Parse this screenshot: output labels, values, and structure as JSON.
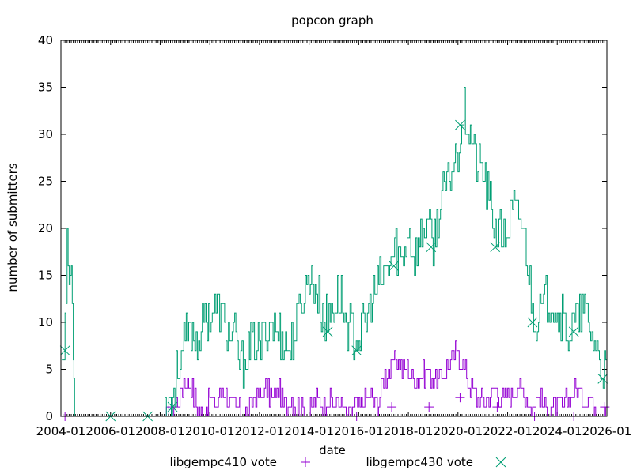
{
  "chart_data": {
    "type": "line",
    "title": "popcon graph",
    "xlabel": "date",
    "ylabel": "number of submitters",
    "xlim": [
      "2004-01-01",
      "2026-01-01"
    ],
    "ylim": [
      0,
      40
    ],
    "x_ticks": [
      "2004-01",
      "2006-01",
      "2008-01",
      "2010-01",
      "2012-01",
      "2014-01",
      "2016-01",
      "2018-01",
      "2020-01",
      "2022-01",
      "2024-01",
      "2026-01"
    ],
    "y_ticks": [
      0,
      5,
      10,
      15,
      20,
      25,
      30,
      35,
      40
    ],
    "grid": false,
    "legend_position": "bottom",
    "series": [
      {
        "name": "libgempc410 vote",
        "color": "#9400d3",
        "marker": "plus",
        "x": [
          "2004-03-01",
          "2008-04-01",
          "2008-07-01",
          "2008-10-01",
          "2009-01-01",
          "2009-04-01",
          "2009-07-01",
          "2009-10-01",
          "2010-01-01",
          "2010-04-01",
          "2010-07-01",
          "2010-10-01",
          "2011-01-01",
          "2011-04-01",
          "2011-07-01",
          "2011-10-01",
          "2012-01-01",
          "2012-04-01",
          "2012-07-01",
          "2012-10-01",
          "2013-01-01",
          "2013-04-01",
          "2013-07-01",
          "2013-10-01",
          "2014-01-01",
          "2014-04-01",
          "2014-07-01",
          "2014-10-01",
          "2015-01-01",
          "2015-04-01",
          "2015-07-01",
          "2015-10-01",
          "2016-01-01",
          "2016-04-01",
          "2016-07-01",
          "2016-10-01",
          "2017-01-01",
          "2017-04-01",
          "2017-07-01",
          "2017-10-01",
          "2018-01-01",
          "2018-04-01",
          "2018-07-01",
          "2018-10-01",
          "2019-01-01",
          "2019-04-01",
          "2019-07-01",
          "2019-10-01",
          "2020-01-01",
          "2020-04-01",
          "2020-07-01",
          "2020-10-01",
          "2021-01-01",
          "2021-04-01",
          "2021-07-01",
          "2021-10-01",
          "2022-01-01",
          "2022-04-01",
          "2022-07-01",
          "2022-10-01",
          "2023-01-01",
          "2023-04-01",
          "2023-07-01",
          "2023-10-01",
          "2024-01-01",
          "2024-04-01",
          "2024-07-01",
          "2024-10-01",
          "2025-01-01",
          "2025-04-01",
          "2025-07-01",
          "2025-10-01",
          "2026-01-01"
        ],
        "values": [
          0,
          0,
          1,
          2,
          4,
          3,
          1,
          0,
          2,
          1,
          3,
          2,
          1,
          1,
          0,
          2,
          2,
          3,
          2,
          3,
          1,
          2,
          1,
          1,
          0,
          2,
          1,
          2,
          1,
          2,
          0,
          1,
          1,
          2,
          2,
          1,
          4,
          5,
          6,
          5,
          5,
          4,
          4,
          5,
          4,
          4,
          5,
          6,
          7,
          5,
          3,
          2,
          2,
          2,
          3,
          2,
          2,
          3,
          3,
          2,
          1,
          2,
          1,
          1,
          1,
          1,
          2,
          3,
          2,
          2,
          1,
          1,
          1
        ],
        "marker_x": [
          "2004-03-01",
          "2008-07-01",
          "2015-12-01",
          "2017-05-01",
          "2018-11-01",
          "2020-02-01",
          "2021-08-01",
          "2023-02-01",
          "2024-09-01",
          "2025-12-01"
        ],
        "marker_values": [
          0,
          1,
          0,
          1,
          1,
          2,
          1,
          0,
          0,
          1
        ]
      },
      {
        "name": "libgempc430 vote",
        "color": "#009e73",
        "marker": "x",
        "x": [
          "2004-01-15",
          "2004-03-01",
          "2004-04-01",
          "2004-05-01",
          "2004-06-01",
          "2004-07-01",
          "2004-07-20",
          "2008-02-01",
          "2008-04-01",
          "2008-07-01",
          "2008-10-01",
          "2009-01-01",
          "2009-04-01",
          "2009-07-01",
          "2009-10-01",
          "2010-01-01",
          "2010-04-01",
          "2010-07-01",
          "2010-10-01",
          "2011-01-01",
          "2011-04-01",
          "2011-07-01",
          "2011-10-01",
          "2012-01-01",
          "2012-04-01",
          "2012-07-01",
          "2012-10-01",
          "2013-01-01",
          "2013-04-01",
          "2013-07-01",
          "2013-10-01",
          "2014-01-01",
          "2014-04-01",
          "2014-07-01",
          "2014-10-01",
          "2015-01-01",
          "2015-04-01",
          "2015-07-01",
          "2015-10-01",
          "2016-01-01",
          "2016-04-01",
          "2016-07-01",
          "2016-10-01",
          "2017-01-01",
          "2017-04-01",
          "2017-07-01",
          "2017-10-01",
          "2018-01-01",
          "2018-04-01",
          "2018-07-01",
          "2018-10-01",
          "2019-01-01",
          "2019-04-01",
          "2019-07-01",
          "2019-10-01",
          "2020-01-01",
          "2020-04-01",
          "2020-07-01",
          "2020-10-01",
          "2021-01-01",
          "2021-04-01",
          "2021-07-01",
          "2021-10-01",
          "2022-01-01",
          "2022-04-01",
          "2022-07-01",
          "2022-10-01",
          "2023-01-01",
          "2023-04-01",
          "2023-07-01",
          "2023-10-01",
          "2024-01-01",
          "2024-04-01",
          "2024-07-01",
          "2024-10-01",
          "2025-01-01",
          "2025-04-01",
          "2025-07-01",
          "2025-10-01",
          "2026-01-01"
        ],
        "values": [
          7,
          10,
          18,
          14,
          16,
          8,
          0,
          0,
          1,
          2,
          6,
          8,
          9,
          8,
          10,
          11,
          12,
          10,
          9,
          8,
          5,
          7,
          8,
          7,
          9,
          10,
          9,
          8,
          7,
          10,
          13,
          15,
          14,
          11,
          10,
          12,
          13,
          10,
          9,
          8,
          10,
          12,
          14,
          15,
          16,
          18,
          16,
          20,
          17,
          19,
          21,
          18,
          22,
          24,
          26,
          29,
          33,
          30,
          27,
          26,
          23,
          20,
          19,
          20,
          22,
          21,
          18,
          11,
          10,
          12,
          13,
          11,
          10,
          9,
          10,
          11,
          10,
          8,
          6,
          4
        ],
        "marker_x": [
          "2004-03-01",
          "2006-01-01",
          "2007-07-01",
          "2008-07-01",
          "2014-10-01",
          "2015-12-01",
          "2017-06-01",
          "2018-12-01",
          "2020-02-01",
          "2021-07-01",
          "2023-01-01",
          "2024-09-01",
          "2025-11-01"
        ],
        "marker_values": [
          7,
          0,
          0,
          1,
          9,
          7,
          16,
          18,
          31,
          18,
          10,
          9,
          4
        ]
      }
    ]
  }
}
